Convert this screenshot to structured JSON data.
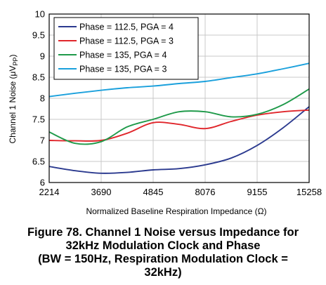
{
  "caption": {
    "line1": "Figure 78. Channel 1 Noise versus Impedance for",
    "line2": "32kHz Modulation Clock and Phase",
    "line3": "(BW = 150Hz, Respiration Modulation Clock =",
    "line4": "32kHz)"
  },
  "chart_data": {
    "type": "line",
    "title": "",
    "xlabel": "Normalized Baseline Respiration Impedance (Ω)",
    "ylabel_main": "Channel 1 Noise (μV",
    "ylabel_sub": "PP",
    "ylabel_close": ")",
    "categories": [
      "2214",
      "3690",
      "4845",
      "8076",
      "9155",
      "15258"
    ],
    "ylim": [
      6,
      10
    ],
    "yticks": [
      "6",
      "6.5",
      "7",
      "7.5",
      "8",
      "8.5",
      "9",
      "9.5",
      "10"
    ],
    "grid": true,
    "legend_position": "top-left",
    "series": [
      {
        "name": "Phase = 112.5, PGA = 4",
        "color": "#2b3a8f",
        "x": [
          0,
          0.5,
          1,
          1.5,
          2,
          2.5,
          3,
          3.5,
          4,
          4.5,
          5
        ],
        "values": [
          6.38,
          6.28,
          6.22,
          6.24,
          6.3,
          6.33,
          6.42,
          6.58,
          6.88,
          7.3,
          7.8
        ]
      },
      {
        "name": "Phase = 112.5, PGA = 3",
        "color": "#e0262b",
        "x": [
          0,
          0.5,
          1,
          1.5,
          2,
          2.5,
          3,
          3.5,
          4,
          4.5,
          5
        ],
        "values": [
          7.0,
          6.99,
          7.0,
          7.17,
          7.42,
          7.38,
          7.28,
          7.45,
          7.6,
          7.68,
          7.72
        ]
      },
      {
        "name": "Phase = 135, PGA = 4",
        "color": "#1f9a4a",
        "x": [
          0,
          0.5,
          1,
          1.5,
          2,
          2.5,
          3,
          3.5,
          4,
          4.5,
          5
        ],
        "values": [
          7.2,
          6.93,
          6.97,
          7.32,
          7.5,
          7.68,
          7.68,
          7.56,
          7.62,
          7.85,
          8.22
        ]
      },
      {
        "name": "Phase = 135, PGA = 3",
        "color": "#1aa0dc",
        "x": [
          0,
          0.5,
          1,
          1.5,
          2,
          2.5,
          3,
          3.5,
          4,
          4.5,
          5
        ],
        "values": [
          8.04,
          8.12,
          8.19,
          8.25,
          8.29,
          8.35,
          8.4,
          8.49,
          8.58,
          8.7,
          8.83
        ]
      }
    ]
  }
}
